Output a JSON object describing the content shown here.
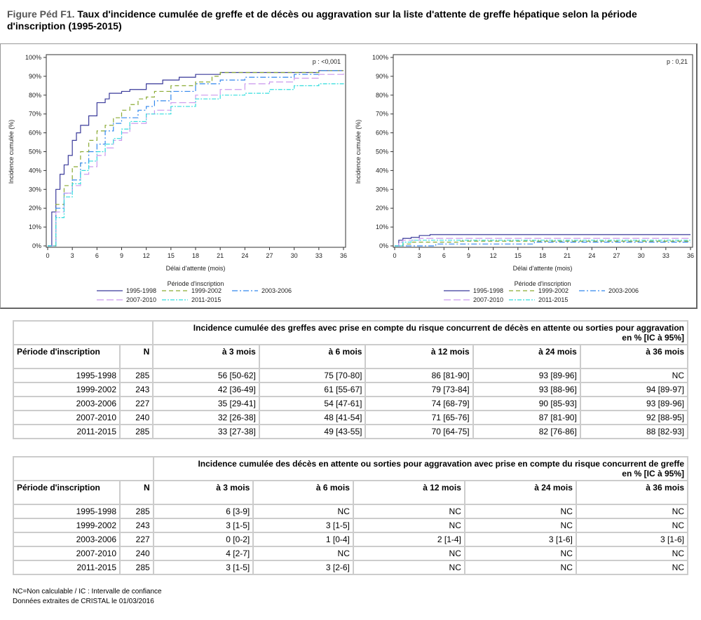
{
  "title": {
    "prefix": "Figure Péd F1.",
    "text": "Taux d'incidence cumulée de greffe et de décès ou aggravation sur la liste d'attente de greffe hépatique selon la période d'inscription (1995-2015)"
  },
  "chart_data": [
    {
      "type": "line",
      "xlabel": "Délai d'attente (mois)",
      "ylabel": "Incidence cumulée (%)",
      "annotation": "p : <0,001",
      "xlim": [
        0,
        36
      ],
      "ylim": [
        0,
        100
      ],
      "xticks": [
        "0",
        "3",
        "6",
        "9",
        "12",
        "15",
        "18",
        "21",
        "24",
        "27",
        "30",
        "33",
        "36"
      ],
      "yticks": [
        "0%",
        "10%",
        "20%",
        "30%",
        "40%",
        "50%",
        "60%",
        "70%",
        "80%",
        "90%",
        "100%"
      ],
      "legend_title": "Période d'inscription",
      "legend_position": "bottom",
      "series": [
        {
          "name": "1995-1998",
          "color": "#3a3a9a",
          "dash": "",
          "points": [
            [
              0,
              0
            ],
            [
              0.5,
              18
            ],
            [
              1,
              30
            ],
            [
              1.5,
              38
            ],
            [
              2,
              43
            ],
            [
              2.5,
              48
            ],
            [
              3,
              56
            ],
            [
              3.5,
              60
            ],
            [
              4,
              64
            ],
            [
              5,
              69
            ],
            [
              6,
              76
            ],
            [
              7,
              78
            ],
            [
              7.5,
              81
            ],
            [
              9,
              82
            ],
            [
              10,
              83
            ],
            [
              12,
              86
            ],
            [
              14,
              88
            ],
            [
              16,
              89.5
            ],
            [
              18,
              91
            ],
            [
              21,
              92
            ],
            [
              33,
              93
            ],
            [
              36,
              93
            ]
          ]
        },
        {
          "name": "1999-2002",
          "color": "#8aaa33",
          "dash": "6,4",
          "points": [
            [
              0,
              0
            ],
            [
              1,
              22
            ],
            [
              2,
              32
            ],
            [
              3,
              42
            ],
            [
              4,
              50
            ],
            [
              5,
              56
            ],
            [
              6,
              61
            ],
            [
              7,
              64
            ],
            [
              8,
              68
            ],
            [
              9,
              72
            ],
            [
              10,
              75
            ],
            [
              11,
              78
            ],
            [
              12,
              79
            ],
            [
              13,
              82
            ],
            [
              15,
              85
            ],
            [
              18,
              87
            ],
            [
              20,
              90
            ],
            [
              21,
              92
            ],
            [
              33,
              93
            ],
            [
              36,
              93
            ]
          ]
        },
        {
          "name": "2003-2006",
          "color": "#3388ee",
          "dash": "8,3,2,3",
          "points": [
            [
              0,
              0
            ],
            [
              1,
              20
            ],
            [
              2,
              28
            ],
            [
              3,
              35
            ],
            [
              4,
              44
            ],
            [
              5,
              50
            ],
            [
              6,
              54
            ],
            [
              7,
              61
            ],
            [
              8,
              65
            ],
            [
              9,
              68
            ],
            [
              11,
              72
            ],
            [
              12,
              74
            ],
            [
              13,
              77
            ],
            [
              15,
              82
            ],
            [
              18,
              86
            ],
            [
              21,
              88
            ],
            [
              24,
              89.5
            ],
            [
              30,
              91
            ],
            [
              33,
              93
            ],
            [
              36,
              93
            ]
          ]
        },
        {
          "name": "2007-2010",
          "color": "#cc99ee",
          "dash": "10,4",
          "points": [
            [
              0,
              0
            ],
            [
              1,
              18
            ],
            [
              2,
              28
            ],
            [
              3,
              32
            ],
            [
              4,
              38
            ],
            [
              5,
              42
            ],
            [
              6,
              48
            ],
            [
              7,
              52
            ],
            [
              8,
              56
            ],
            [
              9,
              60
            ],
            [
              10,
              65
            ],
            [
              12,
              70
            ],
            [
              13,
              72
            ],
            [
              15,
              76
            ],
            [
              18,
              80
            ],
            [
              21,
              83
            ],
            [
              24,
              86
            ],
            [
              27,
              87
            ],
            [
              30,
              89
            ],
            [
              33,
              91
            ],
            [
              36,
              92
            ]
          ]
        },
        {
          "name": "2011-2015",
          "color": "#33dddd",
          "dash": "6,2,2,2",
          "points": [
            [
              0,
              0
            ],
            [
              1,
              15
            ],
            [
              2,
              26
            ],
            [
              3,
              33
            ],
            [
              4,
              40
            ],
            [
              5,
              45
            ],
            [
              6,
              50
            ],
            [
              7,
              54
            ],
            [
              8,
              57
            ],
            [
              9,
              62
            ],
            [
              10,
              66
            ],
            [
              12,
              70
            ],
            [
              15,
              74
            ],
            [
              18,
              78
            ],
            [
              21,
              80
            ],
            [
              24,
              81
            ],
            [
              27,
              83
            ],
            [
              30,
              85
            ],
            [
              33,
              86
            ],
            [
              36,
              87
            ]
          ]
        }
      ]
    },
    {
      "type": "line",
      "xlabel": "Délai d'attente (mois)",
      "ylabel": "Incidence cumulée (%)",
      "annotation": "p : 0,21",
      "xlim": [
        0,
        36
      ],
      "ylim": [
        0,
        100
      ],
      "xticks": [
        "0",
        "3",
        "6",
        "9",
        "12",
        "15",
        "18",
        "21",
        "24",
        "27",
        "30",
        "33",
        "36"
      ],
      "yticks": [
        "0%",
        "10%",
        "20%",
        "30%",
        "40%",
        "50%",
        "60%",
        "70%",
        "80%",
        "90%",
        "100%"
      ],
      "legend_title": "Période d'inscription",
      "legend_position": "bottom",
      "series": [
        {
          "name": "1995-1998",
          "color": "#3a3a9a",
          "dash": "",
          "points": [
            [
              0,
              0
            ],
            [
              0.5,
              3
            ],
            [
              1,
              4
            ],
            [
              2,
              4.5
            ],
            [
              3,
              5.5
            ],
            [
              4.3,
              6
            ],
            [
              36,
              6
            ]
          ]
        },
        {
          "name": "1999-2002",
          "color": "#8aaa33",
          "dash": "6,4",
          "points": [
            [
              0,
              0
            ],
            [
              1,
              1
            ],
            [
              2,
              2
            ],
            [
              8,
              2.5
            ],
            [
              36,
              2.5
            ]
          ]
        },
        {
          "name": "2003-2006",
          "color": "#3388ee",
          "dash": "8,3,2,3",
          "points": [
            [
              0,
              0
            ],
            [
              5,
              1
            ],
            [
              17,
              2
            ],
            [
              36,
              2
            ]
          ]
        },
        {
          "name": "2007-2010",
          "color": "#cc99ee",
          "dash": "10,4",
          "points": [
            [
              0,
              0
            ],
            [
              0.5,
              2
            ],
            [
              1,
              3
            ],
            [
              3,
              4
            ],
            [
              36,
              4
            ]
          ]
        },
        {
          "name": "2011-2015",
          "color": "#33dddd",
          "dash": "6,2,2,2",
          "points": [
            [
              0,
              0
            ],
            [
              1,
              2
            ],
            [
              2,
              3
            ],
            [
              36,
              3
            ]
          ]
        }
      ]
    }
  ],
  "tables": [
    {
      "title": "Incidence cumulée des greffes avec prise en compte du risque concurrent de décès en attente ou sorties pour aggravation",
      "unit": "en % [IC à 95%]",
      "headers": [
        "Période d'inscription",
        "N",
        "à 3 mois",
        "à 6 mois",
        "à 12 mois",
        "à 24 mois",
        "à 36 mois"
      ],
      "rows": [
        [
          "1995-1998",
          "285",
          "56 [50-62]",
          "75 [70-80]",
          "86 [81-90]",
          "93 [89-96]",
          "NC"
        ],
        [
          "1999-2002",
          "243",
          "42 [36-49]",
          "61 [55-67]",
          "79 [73-84]",
          "93 [88-96]",
          "94 [89-97]"
        ],
        [
          "2003-2006",
          "227",
          "35 [29-41]",
          "54 [47-61]",
          "74 [68-79]",
          "90 [85-93]",
          "93 [89-96]"
        ],
        [
          "2007-2010",
          "240",
          "32 [26-38]",
          "48 [41-54]",
          "71 [65-76]",
          "87 [81-90]",
          "92 [88-95]"
        ],
        [
          "2011-2015",
          "285",
          "33 [27-38]",
          "49 [43-55]",
          "70 [64-75]",
          "82 [76-86]",
          "88 [82-93]"
        ]
      ]
    },
    {
      "title": "Incidence cumulée des décès en attente ou sorties pour aggravation avec prise en compte du risque concurrent de greffe",
      "unit": "en % [IC à 95%]",
      "headers": [
        "Période d'inscription",
        "N",
        "à 3 mois",
        "à 6 mois",
        "à 12 mois",
        "à 24 mois",
        "à 36 mois"
      ],
      "rows": [
        [
          "1995-1998",
          "285",
          "6 [3-9]",
          "NC",
          "NC",
          "NC",
          "NC"
        ],
        [
          "1999-2002",
          "243",
          "3 [1-5]",
          "3 [1-5]",
          "NC",
          "NC",
          "NC"
        ],
        [
          "2003-2006",
          "227",
          "0 [0-2]",
          "1 [0-4]",
          "2 [1-4]",
          "3 [1-6]",
          "3 [1-6]"
        ],
        [
          "2007-2010",
          "240",
          "4 [2-7]",
          "NC",
          "NC",
          "NC",
          "NC"
        ],
        [
          "2011-2015",
          "285",
          "3 [1-5]",
          "3 [2-6]",
          "NC",
          "NC",
          "NC"
        ]
      ]
    }
  ],
  "footnotes": [
    "NC=Non calculable / IC : Intervalle de confiance",
    "Données extraites de CRISTAL le 01/03/2016"
  ]
}
